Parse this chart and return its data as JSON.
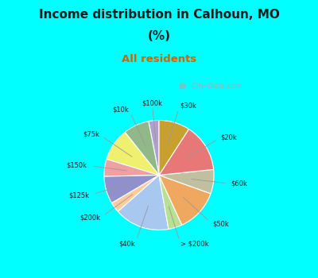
{
  "title_line1": "Income distribution in Calhoun, MO",
  "title_line2": "(%)",
  "subtitle": "All residents",
  "title_color": "#1a1a1a",
  "subtitle_color": "#cc6600",
  "border_color": "#00ffff",
  "background_chart": "#d4ede0",
  "labels": [
    "$100k",
    "$10k",
    "$75k",
    "$150k",
    "$125k",
    "$200k",
    "$40k",
    "> $200k",
    "$50k",
    "$60k",
    "$20k",
    "$30k"
  ],
  "values": [
    3.0,
    7.5,
    9.5,
    5.0,
    8.0,
    3.0,
    16.0,
    4.0,
    12.5,
    7.0,
    14.0,
    9.0
  ],
  "colors": [
    "#b0a0d0",
    "#90b888",
    "#f0f070",
    "#f0a0a0",
    "#9090cc",
    "#ffcc99",
    "#a8c8f0",
    "#b8e090",
    "#f0a860",
    "#c0c0a0",
    "#e87878",
    "#c8a030"
  ],
  "startangle": 90,
  "watermark": "  City-Data.com"
}
